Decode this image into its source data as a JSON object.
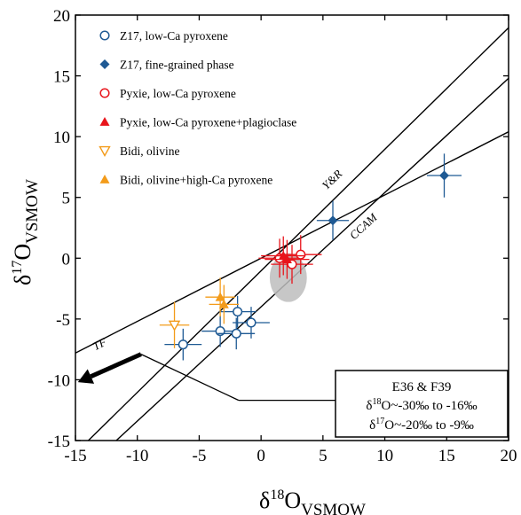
{
  "chart_data": {
    "type": "scatter",
    "title": "",
    "xlabel_main": "δ",
    "xlabel_sup": "18",
    "xlabel_rest": "O",
    "xlabel_sub": "VSMOW",
    "ylabel_main": "δ",
    "ylabel_sup": "17",
    "ylabel_rest": "O",
    "ylabel_sub": "VSMOW",
    "xlim": [
      -15,
      20
    ],
    "ylim": [
      -15,
      20
    ],
    "xticks": [
      "-15",
      "-10",
      "-5",
      "0",
      "5",
      "10",
      "15",
      "20"
    ],
    "yticks": [
      "-15",
      "-10",
      "-5",
      "0",
      "5",
      "10",
      "15",
      "20"
    ],
    "lines": [
      {
        "name": "TF",
        "slope": 0.52,
        "intercept": 0.0
      },
      {
        "name": "Y&R",
        "slope": 1.0,
        "intercept": -1.04
      },
      {
        "name": "CCAM",
        "slope": 0.94,
        "intercept": -4.0
      }
    ],
    "line_labels": {
      "tf": "TF",
      "yr": "Y&R",
      "ccam": "CCAM"
    },
    "series": [
      {
        "name": "Z17, low-Ca pyroxene",
        "marker": "circle-open",
        "color": "#1f5a94",
        "points": [
          {
            "x": -6.3,
            "y": -7.1,
            "xerr": 1.5,
            "yerr": 1.3
          },
          {
            "x": -3.3,
            "y": -6.0,
            "xerr": 1.5,
            "yerr": 1.3
          },
          {
            "x": -1.9,
            "y": -4.4,
            "xerr": 1.5,
            "yerr": 1.3
          },
          {
            "x": -2.0,
            "y": -6.2,
            "xerr": 1.5,
            "yerr": 1.3
          },
          {
            "x": -0.8,
            "y": -5.3,
            "xerr": 1.5,
            "yerr": 1.3
          }
        ]
      },
      {
        "name": "Z17, fine-grained phase",
        "marker": "diamond",
        "color": "#1f5a94",
        "points": [
          {
            "x": 5.8,
            "y": 3.1,
            "xerr": 1.3,
            "yerr": 1.6
          },
          {
            "x": 14.8,
            "y": 6.8,
            "xerr": 1.4,
            "yerr": 1.8
          }
        ]
      },
      {
        "name": "Pyxie, low-Ca pyroxene",
        "marker": "circle-open",
        "color": "#e8141b",
        "points": [
          {
            "x": 1.5,
            "y": 0.0,
            "xerr": 1.7,
            "yerr": 1.6
          },
          {
            "x": 2.5,
            "y": -0.5,
            "xerr": 1.7,
            "yerr": 1.6
          },
          {
            "x": 3.2,
            "y": 0.3,
            "xerr": 1.7,
            "yerr": 1.6
          }
        ]
      },
      {
        "name": "Pyxie, low-Ca pyroxene+plagioclase",
        "marker": "triangle-up",
        "color": "#e8141b",
        "points": [
          {
            "x": 1.8,
            "y": 0.2,
            "xerr": 1.8,
            "yerr": 1.6
          },
          {
            "x": 2.1,
            "y": -0.1,
            "xerr": 1.8,
            "yerr": 1.6
          }
        ]
      },
      {
        "name": "Bidi, olivine",
        "marker": "triangle-down-open",
        "color": "#f39b1a",
        "points": [
          {
            "x": -7.0,
            "y": -5.5,
            "xerr": 1.2,
            "yerr": 1.9
          }
        ]
      },
      {
        "name": "Bidi, olivine+high-Ca pyroxene",
        "marker": "triangle-up",
        "color": "#f39b1a",
        "points": [
          {
            "x": -3.3,
            "y": -3.2,
            "xerr": 1.2,
            "yerr": 1.6
          },
          {
            "x": -3.0,
            "y": -3.8,
            "xerr": 1.2,
            "yerr": 1.6
          }
        ]
      }
    ],
    "gray_ellipse": {
      "cx": 2.2,
      "cy": -1.6,
      "rx": 1.5,
      "ry": 2.0,
      "color": "#bdbdbd"
    },
    "arrow": {
      "from": [
        -9.7,
        -7.9
      ],
      "to": [
        -14.8,
        -10.2
      ]
    },
    "annotation": {
      "lines": [
        "E36 & F39",
        "δ18O~-30‰ to -16‰",
        "δ17O~-20‰ to -9‰"
      ],
      "title": "E36 & F39",
      "l2_delta": "δ",
      "l2_sup": "18",
      "l2_rest": "O~-30‰ to -16‰",
      "l3_delta": "δ",
      "l3_sup": "17",
      "l3_rest": "O~-20‰ to -9‰"
    }
  }
}
